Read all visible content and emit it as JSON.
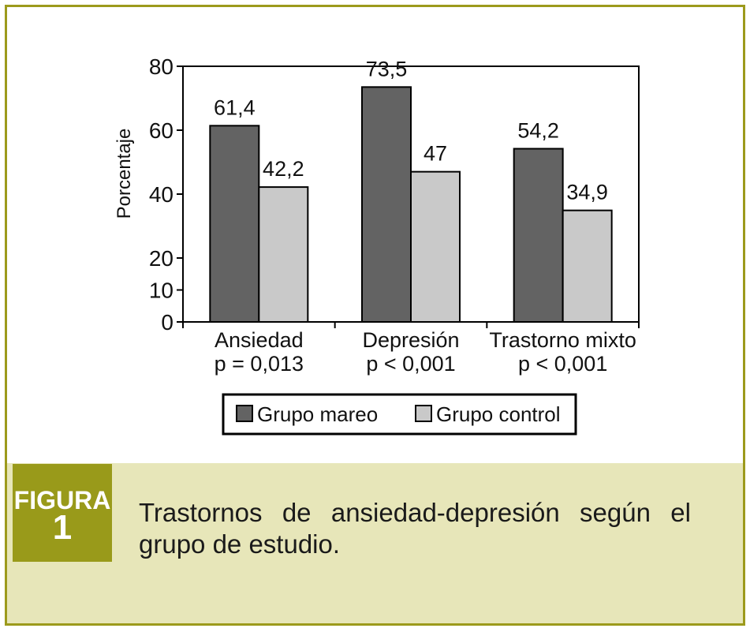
{
  "figure": {
    "label": "FIGURA",
    "number": "1",
    "caption": "Trastornos de ansiedad-depresión según el grupo de estudio."
  },
  "colors": {
    "frame": "#9c9a1c",
    "caption_band": "#e7e6b9",
    "figura_box": "#999a1a",
    "series_mareo": "#636363",
    "series_control": "#c9c9c9"
  },
  "chart_data": {
    "type": "bar",
    "ylabel": "Porcentaje",
    "ylim": [
      0,
      80
    ],
    "yticks": [
      0,
      10,
      20,
      40,
      60,
      80
    ],
    "categories": [
      {
        "name": "Ansiedad",
        "pvalue": "p = 0,013"
      },
      {
        "name": "Depresión",
        "pvalue": "p < 0,001"
      },
      {
        "name": "Trastorno mixto",
        "pvalue": "p < 0,001"
      }
    ],
    "series": [
      {
        "name": "Grupo mareo",
        "values": [
          61.4,
          73.5,
          54.2
        ],
        "labels": [
          "61,4",
          "73,5",
          "54,2"
        ]
      },
      {
        "name": "Grupo control",
        "values": [
          42.2,
          47,
          34.9
        ],
        "labels": [
          "42,2",
          "47",
          "34,9"
        ]
      }
    ],
    "legend_position": "bottom",
    "grid": false
  }
}
